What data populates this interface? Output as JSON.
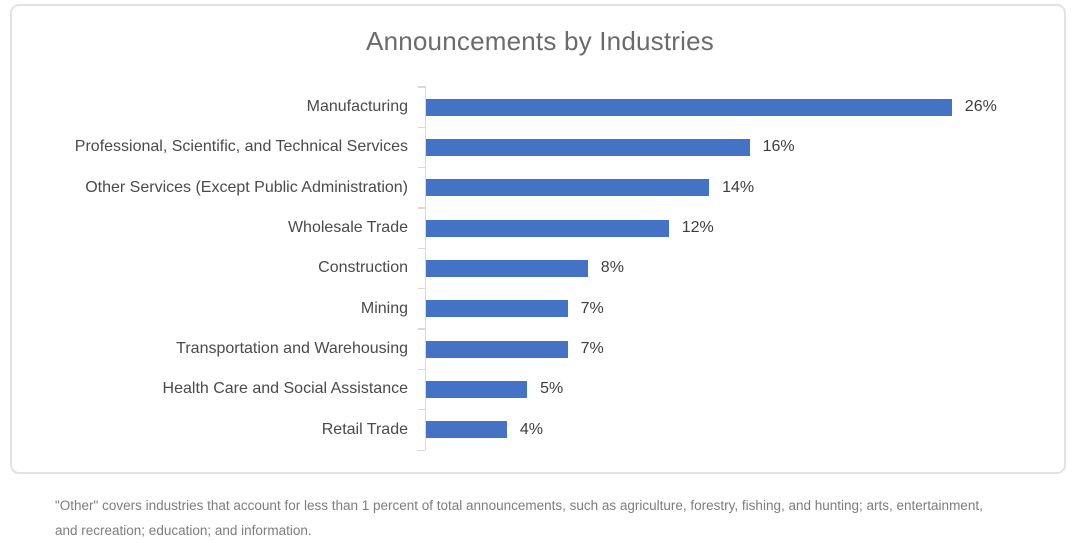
{
  "chart_data": {
    "type": "bar",
    "orientation": "horizontal",
    "title": "Announcements by Industries",
    "categories": [
      "Manufacturing",
      "Professional, Scientific, and Technical Services",
      "Other Services (Except Public Administration)",
      "Wholesale Trade",
      "Construction",
      "Mining",
      "Transportation and Warehousing",
      "Health Care and Social Assistance",
      "Retail Trade"
    ],
    "values": [
      26,
      16,
      14,
      12,
      8,
      7,
      7,
      5,
      4
    ],
    "value_labels": [
      "26%",
      "16%",
      "14%",
      "12%",
      "8%",
      "7%",
      "7%",
      "5%",
      "4%"
    ],
    "xlabel": "",
    "ylabel": "",
    "xlim": [
      0,
      31.5
    ],
    "grid": false,
    "legend": false,
    "bar_color": "#4472C4",
    "axis_color": "#D9D9D9",
    "title_color": "#6B6B6B",
    "label_color": "#4A4A4A",
    "value_label_color": "#3D3D3D"
  },
  "footnote": "\"Other\" covers industries that account for less than 1 percent of total announcements, such as agriculture, forestry, fishing, and hunting; arts, entertainment, and recreation; education; and information."
}
